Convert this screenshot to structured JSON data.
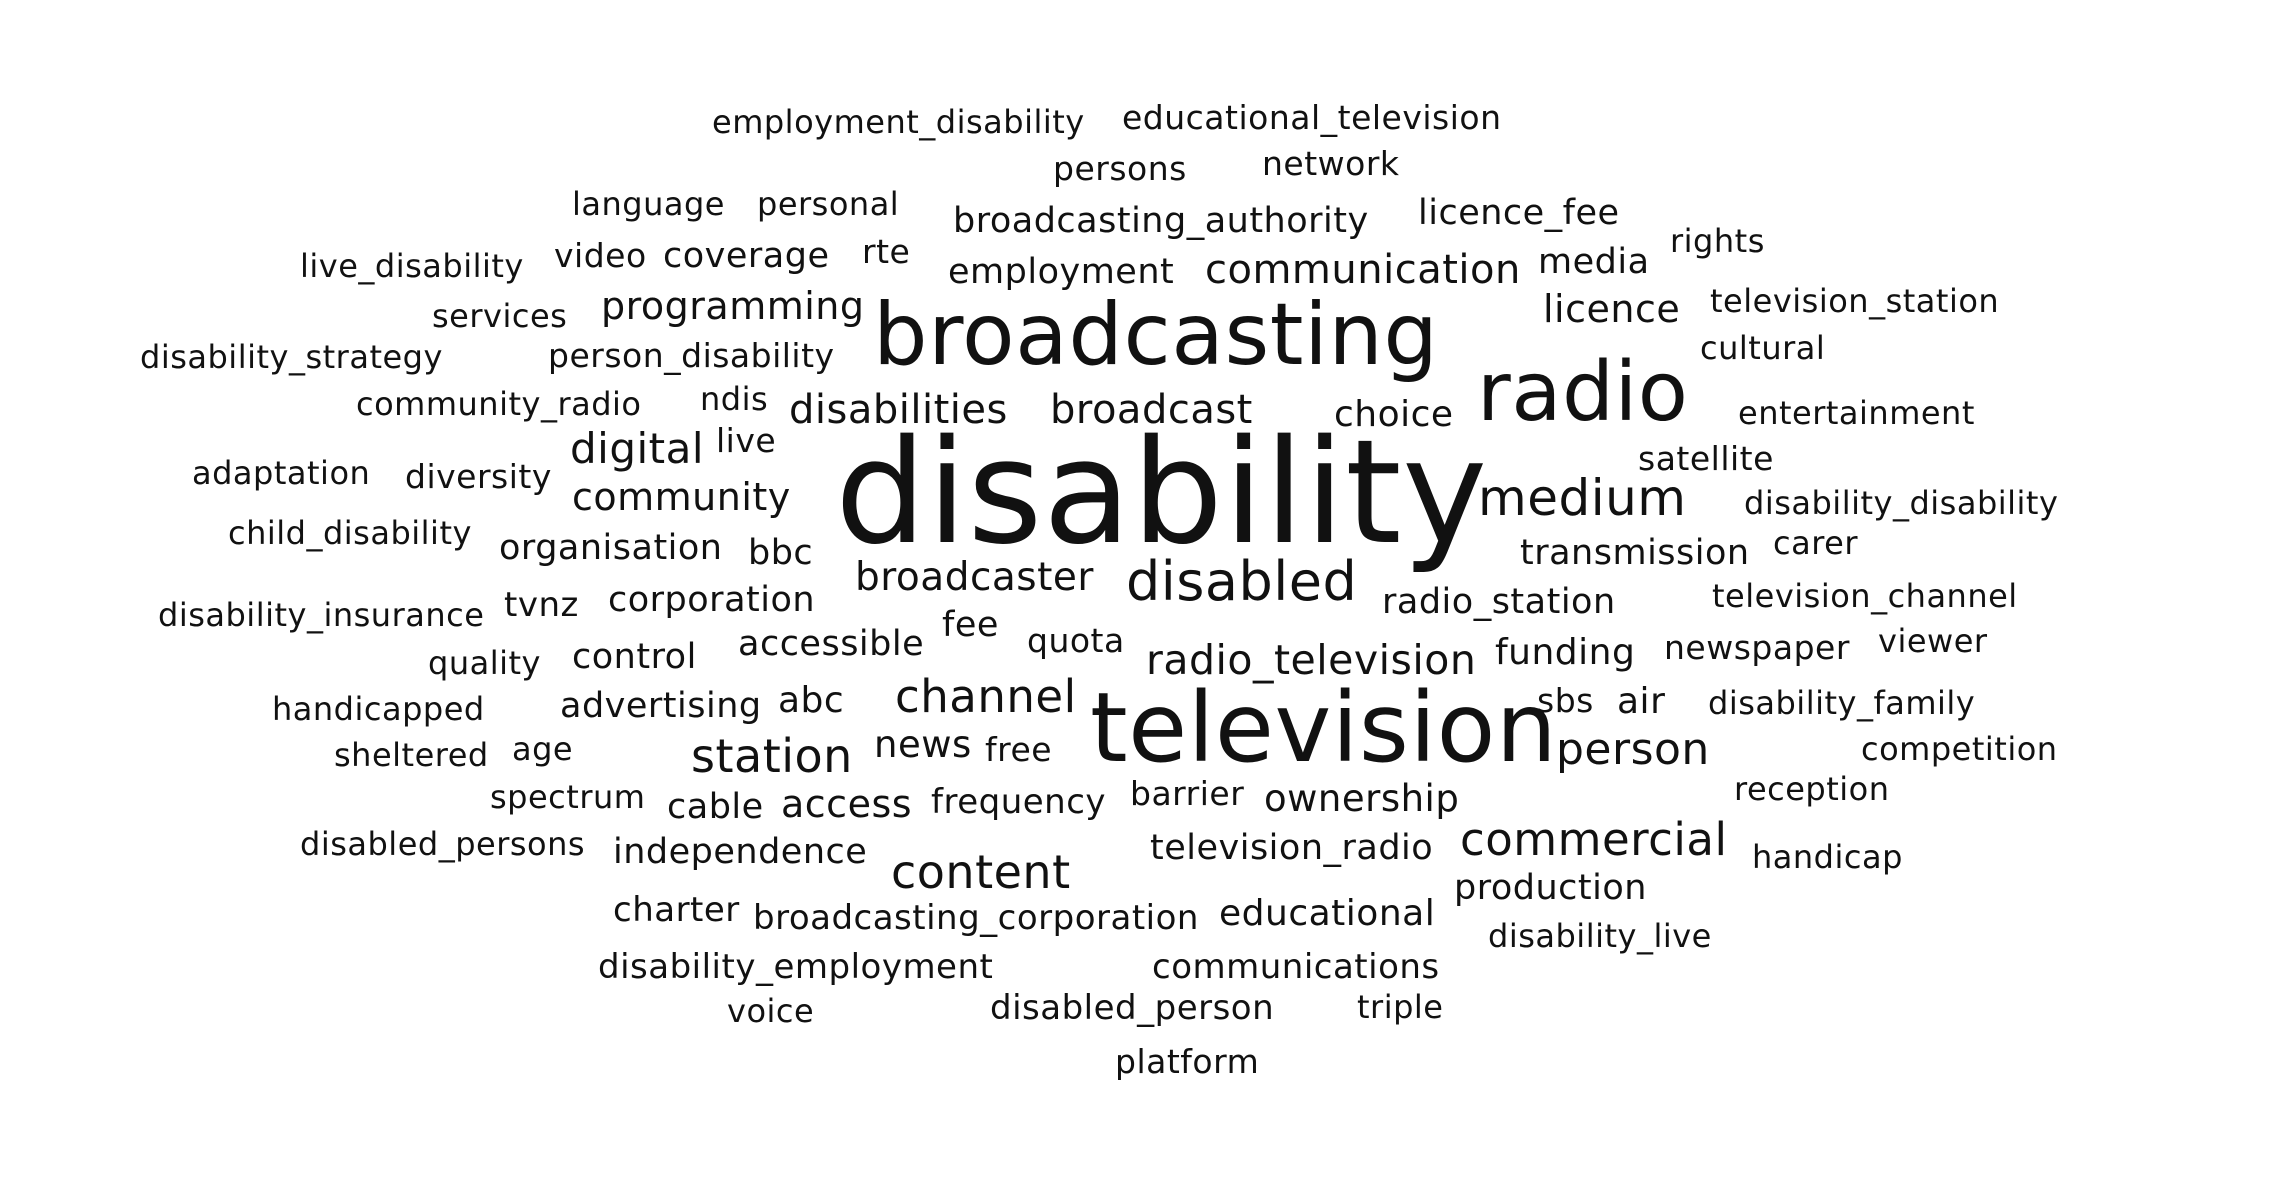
{
  "text_color": "#111111",
  "background": "#ffffff",
  "words": [
    "employment_disability",
    "educational_television",
    "persons",
    "network",
    "language",
    "personal",
    "broadcasting_authority",
    "licence_fee",
    "rights",
    "live_disability",
    "video",
    "coverage",
    "rte",
    "employment",
    "communication",
    "media",
    "services",
    "programming",
    "licence",
    "television_station",
    "broadcasting",
    "disability_strategy",
    "person_disability",
    "cultural",
    "radio",
    "community_radio",
    "ndis",
    "disabilities",
    "broadcast",
    "choice",
    "entertainment",
    "digital",
    "live",
    "adaptation",
    "diversity",
    "disability",
    "satellite",
    "community",
    "medium",
    "disability_disability",
    "child_disability",
    "organisation",
    "bbc",
    "transmission",
    "carer",
    "broadcaster",
    "disabled",
    "disability_insurance",
    "tvnz",
    "corporation",
    "radio_station",
    "television_channel",
    "fee",
    "accessible",
    "quota",
    "quality",
    "control",
    "radio_television",
    "funding",
    "newspaper",
    "viewer",
    "handicapped",
    "advertising",
    "abc",
    "channel",
    "sbs",
    "air",
    "disability_family",
    "television",
    "sheltered",
    "age",
    "station",
    "news",
    "free",
    "person",
    "competition",
    "spectrum",
    "cable",
    "access",
    "frequency",
    "barrier",
    "ownership",
    "reception",
    "disabled_persons",
    "independence",
    "television_radio",
    "commercial",
    "handicap",
    "content",
    "production",
    "charter",
    "broadcasting_corporation",
    "educational",
    "disability_live",
    "disability_employment",
    "communications",
    "voice",
    "disabled_person",
    "triple",
    "platform"
  ]
}
